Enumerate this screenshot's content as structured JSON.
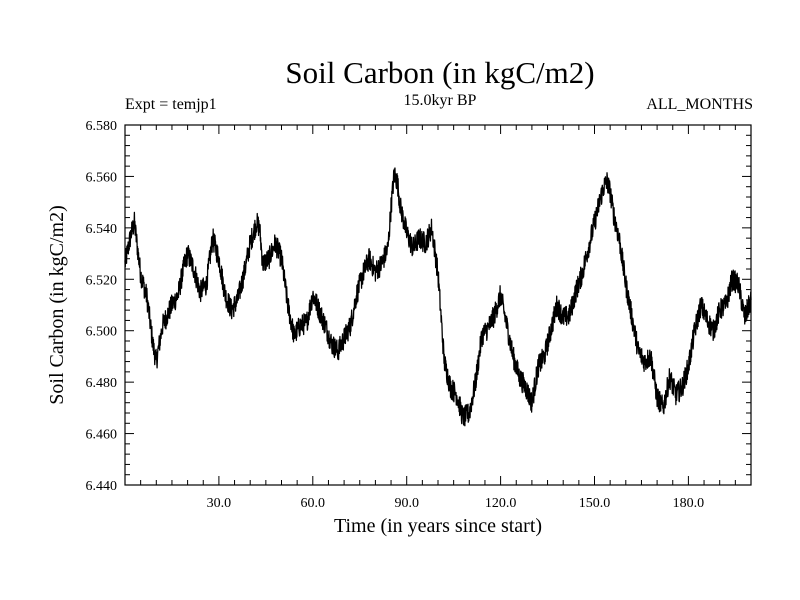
{
  "header": {
    "title": "Soil Carbon (in kgC/m2)",
    "experiment": "Expt = temjp1",
    "period": "15.0kyr BP",
    "months": "ALL_MONTHS"
  },
  "colors": {
    "line": "#000000",
    "background": "#ffffff"
  },
  "chart_data": {
    "type": "line",
    "title": "Soil Carbon (in kgC/m2)",
    "xlabel": "Time (in years since start)",
    "ylabel": "Soil Carbon (in kgC/m2)",
    "xlim": [
      0,
      200
    ],
    "ylim": [
      6.44,
      6.58
    ],
    "x_ticks": [
      30,
      60,
      90,
      120,
      150,
      180
    ],
    "x_tick_labels": [
      "30.0",
      "60.0",
      "90.0",
      "120.0",
      "150.0",
      "180.0"
    ],
    "y_ticks": [
      6.44,
      6.46,
      6.48,
      6.5,
      6.52,
      6.54,
      6.56,
      6.58
    ],
    "y_tick_labels": [
      "6.440",
      "6.460",
      "6.480",
      "6.500",
      "6.520",
      "6.540",
      "6.560",
      "6.580"
    ],
    "grid": false,
    "series": [
      {
        "name": "Soil Carbon",
        "x": [
          0,
          2,
          3,
          5,
          7,
          9,
          10,
          12,
          15,
          17,
          19,
          20,
          22,
          24,
          26,
          28,
          30,
          32,
          34,
          36,
          38,
          40,
          41,
          42,
          43,
          44,
          46,
          48,
          50,
          52,
          54,
          56,
          58,
          60,
          62,
          64,
          66,
          68,
          70,
          72,
          74,
          76,
          78,
          80,
          82,
          84,
          85,
          86,
          87,
          88,
          90,
          92,
          94,
          96,
          98,
          100,
          102,
          104,
          106,
          108,
          110,
          112,
          114,
          116,
          118,
          120,
          122,
          124,
          126,
          128,
          130,
          132,
          134,
          136,
          138,
          140,
          142,
          144,
          146,
          148,
          150,
          152,
          153,
          154,
          155,
          156,
          158,
          160,
          162,
          164,
          166,
          168,
          170,
          172,
          174,
          176,
          178,
          180,
          182,
          184,
          186,
          188,
          190,
          192,
          194,
          196,
          198,
          200
        ],
        "y": [
          6.526,
          6.538,
          6.542,
          6.522,
          6.513,
          6.494,
          6.488,
          6.502,
          6.51,
          6.514,
          6.526,
          6.53,
          6.524,
          6.515,
          6.518,
          6.536,
          6.528,
          6.514,
          6.508,
          6.512,
          6.522,
          6.534,
          6.538,
          6.542,
          6.54,
          6.526,
          6.528,
          6.534,
          6.528,
          6.51,
          6.498,
          6.502,
          6.503,
          6.514,
          6.508,
          6.502,
          6.495,
          6.492,
          6.497,
          6.502,
          6.514,
          6.522,
          6.528,
          6.523,
          6.526,
          6.532,
          6.548,
          6.561,
          6.558,
          6.548,
          6.538,
          6.532,
          6.536,
          6.534,
          6.54,
          6.522,
          6.488,
          6.478,
          6.475,
          6.466,
          6.468,
          6.48,
          6.498,
          6.501,
          6.506,
          6.514,
          6.502,
          6.49,
          6.482,
          6.478,
          6.472,
          6.486,
          6.49,
          6.5,
          6.51,
          6.505,
          6.506,
          6.515,
          6.522,
          6.532,
          6.542,
          6.552,
          6.556,
          6.558,
          6.554,
          6.546,
          6.535,
          6.518,
          6.505,
          6.492,
          6.488,
          6.49,
          6.474,
          6.47,
          6.482,
          6.475,
          6.478,
          6.486,
          6.5,
          6.51,
          6.504,
          6.5,
          6.508,
          6.51,
          6.52,
          6.518,
          6.505,
          6.512
        ]
      }
    ]
  }
}
